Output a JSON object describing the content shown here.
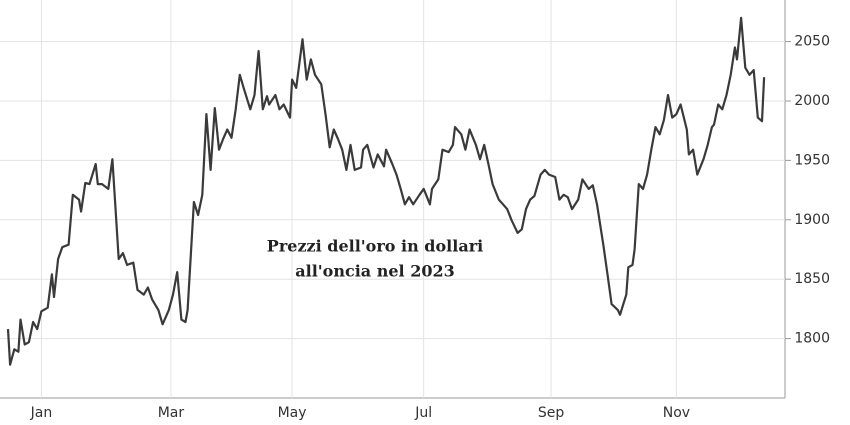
{
  "chart_data": {
    "type": "line",
    "title": [
      "Prezzi dell'oro in dollari",
      "all'oncia nel 2023"
    ],
    "x": [
      0,
      1,
      3,
      5,
      6,
      8,
      10,
      12,
      14,
      16,
      19,
      21,
      22,
      24,
      26,
      29,
      31,
      34,
      35,
      37,
      39,
      42,
      43,
      45,
      48,
      50,
      53,
      55,
      57,
      60,
      62,
      65,
      67,
      69,
      72,
      74,
      77,
      79,
      81,
      83,
      85,
      86,
      89,
      91,
      93,
      95,
      97,
      99,
      101,
      103,
      105,
      107,
      109,
      111,
      113,
      116,
      118,
      120,
      122,
      124,
      125,
      128,
      130,
      132,
      135,
      136,
      138,
      141,
      143,
      145,
      147,
      150,
      152,
      154,
      156,
      158,
      160,
      162,
      164,
      166,
      169,
      170,
      172,
      175,
      177,
      180,
      181,
      184,
      186,
      188,
      190,
      192,
      194,
      197,
      199,
      202,
      203,
      206,
      208,
      211,
      213,
      214,
      217,
      219,
      221,
      224,
      226,
      228,
      230,
      232,
      235,
      237,
      239,
      241,
      244,
      246,
      248,
      250,
      252,
      255,
      257,
      259,
      262,
      264,
      266,
      268,
      270,
      273,
      275,
      278,
      280,
      282,
      285,
      287,
      289,
      292,
      293,
      296,
      297,
      299,
      300,
      302,
      304,
      306,
      308,
      310,
      312,
      314,
      316,
      318,
      320,
      322,
      325,
      326,
      328,
      330,
      333,
      335,
      337,
      338,
      340,
      342,
      344,
      346,
      348,
      349,
      351,
      353,
      355,
      357,
      359,
      361,
      362
    ],
    "values": [
      1808,
      1778,
      1791,
      1789,
      1816,
      1795,
      1797,
      1814,
      1808,
      1823,
      1826,
      1854,
      1835,
      1867,
      1877,
      1879,
      1921,
      1917,
      1907,
      1931,
      1930,
      1947,
      1930,
      1930,
      1926,
      1951,
      1867,
      1872,
      1862,
      1864,
      1841,
      1837,
      1843,
      1833,
      1824,
      1812,
      1824,
      1837,
      1856,
      1816,
      1814,
      1824,
      1915,
      1904,
      1921,
      1989,
      1942,
      1994,
      1959,
      1968,
      1976,
      1969,
      1993,
      2022,
      2010,
      1993,
      2005,
      2042,
      1993,
      2004,
      1997,
      2005,
      1993,
      1997,
      1986,
      2018,
      2011,
      2052,
      2018,
      2035,
      2022,
      2014,
      1989,
      1961,
      1976,
      1968,
      1959,
      1942,
      1963,
      1942,
      1944,
      1959,
      1963,
      1944,
      1955,
      1945,
      1959,
      1947,
      1938,
      1926,
      1913,
      1919,
      1913,
      1921,
      1926,
      1913,
      1926,
      1934,
      1959,
      1957,
      1963,
      1978,
      1972,
      1959,
      1976,
      1963,
      1951,
      1963,
      1947,
      1930,
      1917,
      1913,
      1909,
      1900,
      1889,
      1892,
      1909,
      1917,
      1920,
      1938,
      1942,
      1938,
      1936,
      1917,
      1921,
      1919,
      1909,
      1917,
      1934,
      1926,
      1929,
      1913,
      1879,
      1854,
      1829,
      1824,
      1820,
      1837,
      1860,
      1862,
      1875,
      1930,
      1926,
      1938,
      1959,
      1978,
      1972,
      1984,
      2005,
      1986,
      1989,
      1997,
      1976,
      1955,
      1959,
      1938,
      1951,
      1963,
      1978,
      1980,
      1997,
      1993,
      2005,
      2022,
      2045,
      2035,
      2070,
      2028,
      2022,
      2026,
      1986,
      1983,
      2020
    ],
    "color": "#3a3a3a",
    "xlim": [
      0,
      372
    ],
    "xticks": [
      {
        "value": 16,
        "label": "Jan"
      },
      {
        "value": 78,
        "label": "Mar"
      },
      {
        "value": 136,
        "label": "May"
      },
      {
        "value": 199,
        "label": "Jul"
      },
      {
        "value": 260,
        "label": "Sep"
      },
      {
        "value": 320,
        "label": "Nov"
      }
    ],
    "ylim": [
      1750,
      2085
    ],
    "yticks": [
      1800,
      1850,
      1900,
      1950,
      2000,
      2050
    ],
    "grid": true
  }
}
